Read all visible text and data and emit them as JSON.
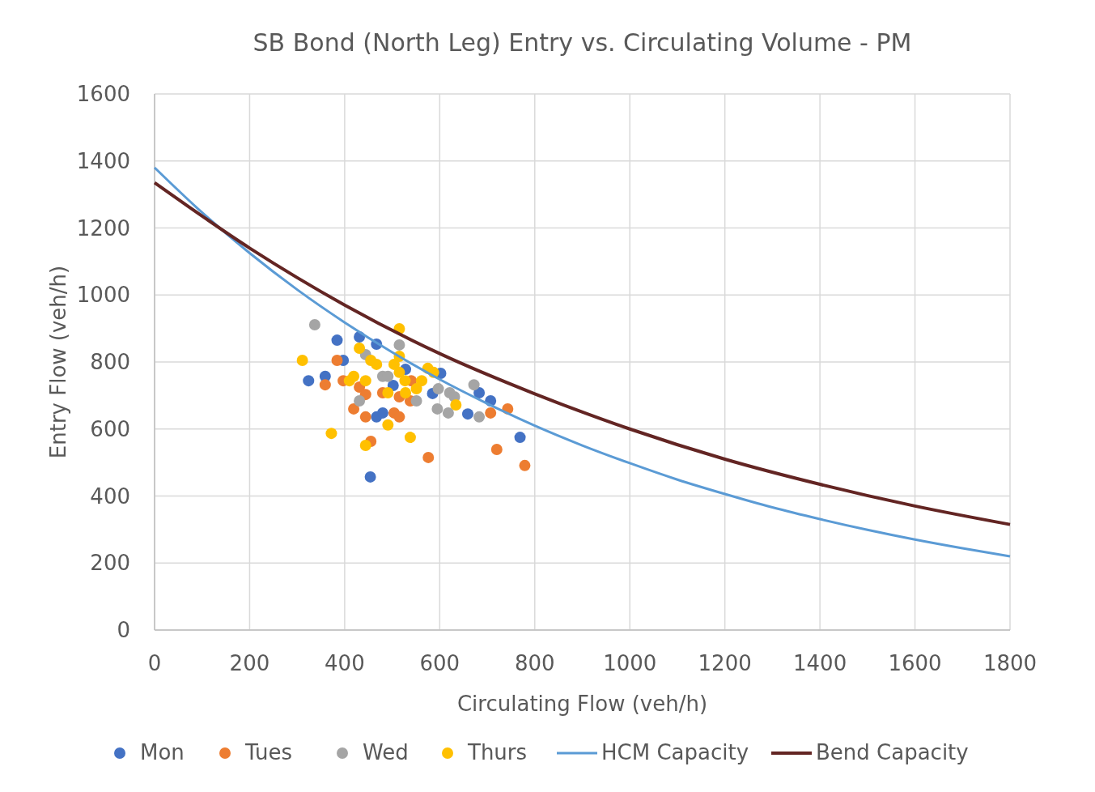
{
  "chart_data": {
    "type": "scatter",
    "title": "SB Bond (North Leg) Entry vs. Circulating Volume  - PM",
    "xlabel": "Circulating Flow (veh/h)",
    "ylabel": "Entry Flow (veh/h)",
    "xlim": [
      0,
      1800
    ],
    "xticks": [
      0,
      200,
      400,
      600,
      800,
      1000,
      1200,
      1400,
      1600,
      1800
    ],
    "ylim": [
      0,
      1600
    ],
    "yticks": [
      0,
      200,
      400,
      600,
      800,
      1000,
      1200,
      1400,
      1600
    ],
    "grid": true,
    "legend": "bottom",
    "marker": "circle",
    "series": [
      {
        "name": "Mon",
        "color": "#4472c4",
        "x": [
          324,
          359,
          384,
          397,
          431,
          467,
          467,
          480,
          454,
          528,
          602,
          585,
          659,
          683,
          707,
          769,
          502
        ],
        "values": [
          744,
          757,
          865,
          805,
          875,
          853,
          636,
          648,
          457,
          778,
          766,
          706,
          645,
          708,
          684,
          575,
          730
        ]
      },
      {
        "name": "Tues",
        "color": "#ed7d31",
        "x": [
          359,
          384,
          397,
          419,
          431,
          444,
          444,
          455,
          480,
          504,
          515,
          515,
          538,
          576,
          707,
          743,
          720,
          779,
          540
        ],
        "values": [
          732,
          805,
          744,
          660,
          725,
          703,
          636,
          563,
          708,
          648,
          636,
          696,
          684,
          515,
          648,
          660,
          539,
          491,
          744
        ]
      },
      {
        "name": "Wed",
        "color": "#a5a5a5",
        "x": [
          337,
          431,
          444,
          480,
          515,
          491,
          551,
          595,
          618,
          621,
          631,
          672,
          683,
          597
        ],
        "values": [
          911,
          684,
          822,
          757,
          851,
          757,
          684,
          660,
          648,
          708,
          696,
          732,
          636,
          720
        ]
      },
      {
        "name": "Thurs",
        "color": "#ffc000",
        "x": [
          311,
          372,
          410,
          419,
          431,
          444,
          444,
          455,
          467,
          491,
          491,
          504,
          515,
          515,
          515,
          538,
          528,
          551,
          562,
          575,
          587,
          634,
          527
        ],
        "values": [
          805,
          587,
          744,
          757,
          841,
          744,
          551,
          805,
          793,
          708,
          612,
          793,
          899,
          817,
          769,
          575,
          708,
          720,
          744,
          781,
          769,
          672,
          744
        ]
      },
      {
        "name": "HCM Capacity",
        "type": "line",
        "color": "#5b9bd5",
        "marker": "none",
        "x": [
          0,
          100,
          200,
          300,
          400,
          500,
          600,
          700,
          800,
          900,
          1000,
          1100,
          1200,
          1300,
          1400,
          1500,
          1600,
          1700,
          1800
        ],
        "values": [
          1380,
          1246,
          1125,
          1016,
          918,
          829,
          748,
          676,
          610,
          551,
          498,
          449,
          406,
          366,
          331,
          299,
          270,
          244,
          220
        ]
      },
      {
        "name": "Bend Capacity",
        "type": "line",
        "color": "#632523",
        "marker": "none",
        "x": [
          0,
          200,
          400,
          600,
          800,
          1000,
          1200,
          1400,
          1600,
          1800
        ],
        "values": [
          1335,
          1140,
          970,
          825,
          705,
          600,
          510,
          435,
          370,
          315
        ]
      }
    ]
  }
}
